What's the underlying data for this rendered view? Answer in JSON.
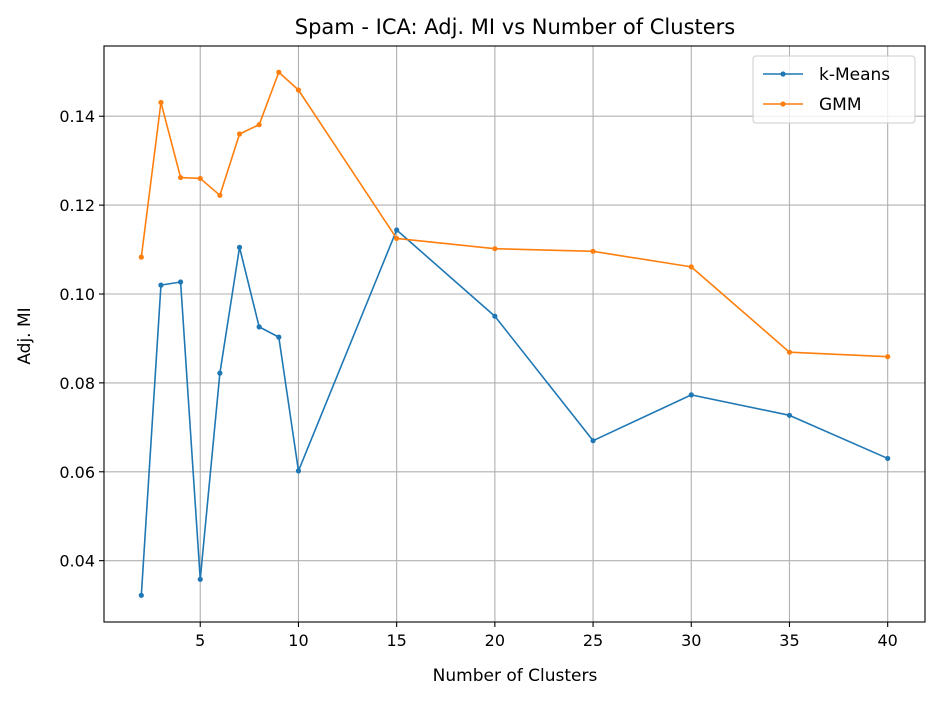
{
  "chart_data": {
    "type": "line",
    "title": "Spam - ICA: Adj. MI vs Number of Clusters",
    "xlabel": "Number of Clusters",
    "ylabel": "Adj. MI",
    "x": [
      2,
      3,
      4,
      5,
      6,
      7,
      8,
      9,
      10,
      15,
      20,
      25,
      30,
      35,
      40
    ],
    "xticks": [
      5,
      10,
      15,
      20,
      25,
      30,
      35,
      40
    ],
    "xtick_labels": [
      "5",
      "10",
      "15",
      "20",
      "25",
      "30",
      "35",
      "40"
    ],
    "yticks": [
      0.04,
      0.06,
      0.08,
      0.1,
      0.12,
      0.14
    ],
    "ytick_labels": [
      "0.04",
      "0.06",
      "0.08",
      "0.10",
      "0.12",
      "0.14"
    ],
    "xlim": [
      0.1,
      41.9
    ],
    "ylim": [
      0.0262,
      0.1558
    ],
    "grid": true,
    "legend_position": "top-right",
    "series": [
      {
        "name": "k-Means",
        "color": "#1f77b4",
        "values": [
          0.0322,
          0.102,
          0.1027,
          0.0358,
          0.0822,
          0.1105,
          0.0926,
          0.0903,
          0.0602,
          0.1144,
          0.095,
          0.067,
          0.0773,
          0.0727,
          0.063
        ]
      },
      {
        "name": "GMM",
        "color": "#ff7f0e",
        "values": [
          0.1083,
          0.1431,
          0.1262,
          0.126,
          0.1222,
          0.136,
          0.1381,
          0.1499,
          0.1459,
          0.1125,
          0.1102,
          0.1096,
          0.1061,
          0.0869,
          0.0859
        ]
      }
    ]
  }
}
